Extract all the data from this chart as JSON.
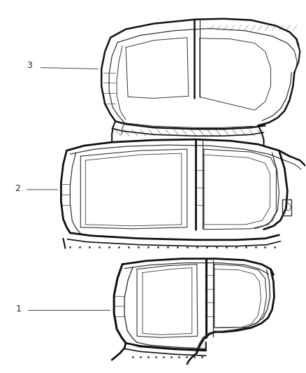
{
  "background_color": "#ffffff",
  "fig_width": 4.38,
  "fig_height": 5.33,
  "dpi": 100,
  "line_color": "#333333",
  "line_color_light": "#555555",
  "line_color_dark": "#111111"
}
